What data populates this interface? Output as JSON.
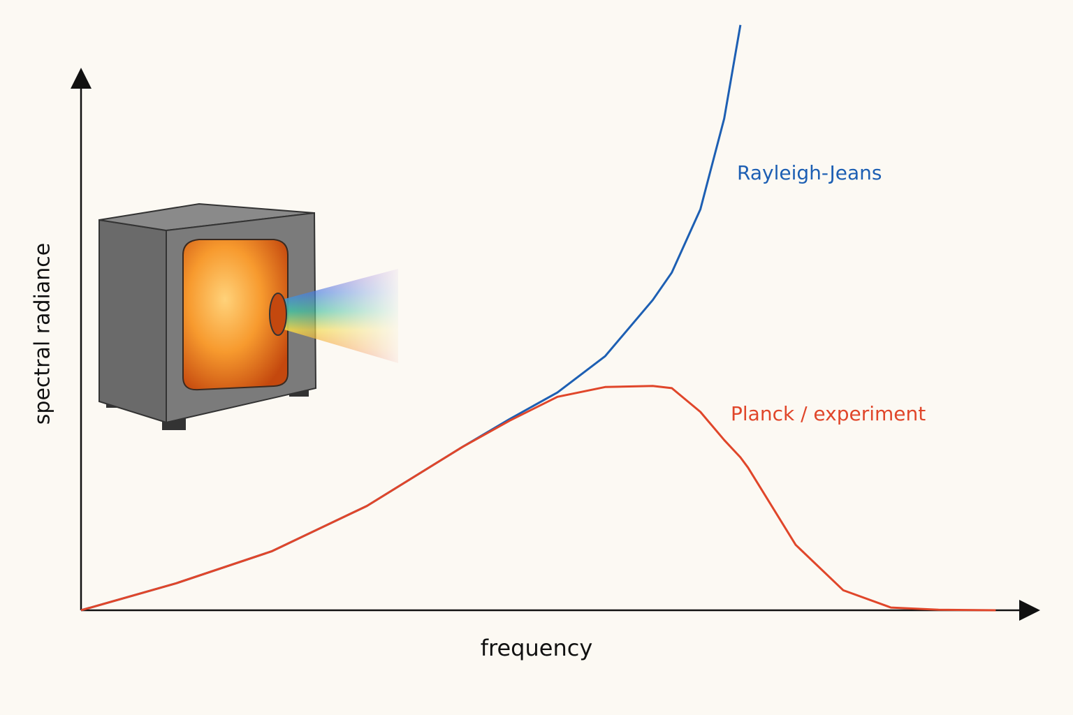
{
  "chart_data": {
    "type": "line",
    "xlabel": "frequency",
    "ylabel": "spectral radiance",
    "x": [
      0,
      10,
      20,
      30,
      40,
      45,
      50,
      55,
      60,
      62,
      65,
      67.5,
      69.2,
      70,
      75,
      80,
      85,
      90,
      96
    ],
    "series": [
      {
        "name": "Rayleigh-Jeans",
        "color": "#1d5fb3",
        "values": [
          0,
          5.0,
          10.9,
          19.3,
          30.2,
          35.4,
          40.3,
          47.0,
          57.4,
          62.5,
          74.2,
          91.0,
          108.3,
          null,
          null,
          null,
          null,
          null,
          null
        ]
      },
      {
        "name": "Planck / experiment",
        "color": "#e0462a",
        "values": [
          0,
          5.0,
          10.9,
          19.3,
          30.2,
          35.1,
          39.5,
          41.3,
          41.5,
          41.1,
          36.7,
          31.5,
          28.3,
          26.4,
          12.1,
          3.7,
          0.5,
          0.1,
          0
        ]
      }
    ],
    "xlim": [
      0,
      100
    ],
    "ylim": [
      0,
      100
    ],
    "grid": false
  }
}
